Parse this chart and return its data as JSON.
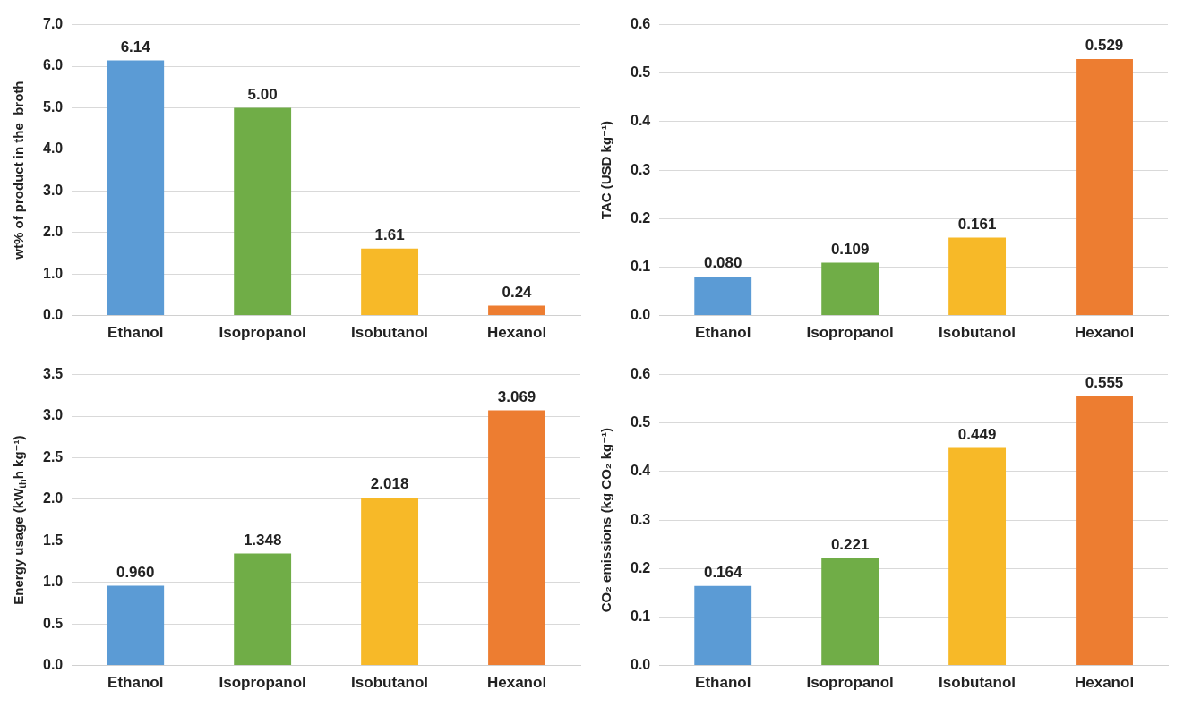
{
  "chart_data": [
    {
      "type": "bar",
      "ylabel": "wt% of product in the  broth",
      "categories": [
        "Ethanol",
        "Isopropanol",
        "Isobutanol",
        "Hexanol"
      ],
      "values": [
        6.14,
        5.0,
        1.61,
        0.24
      ],
      "value_labels": [
        "6.14",
        "5.00",
        "1.61",
        "0.24"
      ],
      "colors": [
        "#5b9bd5",
        "#70ad47",
        "#f7b928",
        "#ed7d31"
      ],
      "ylim": [
        0,
        7
      ],
      "yticks": [
        {
          "value": 0,
          "label": "0.0"
        },
        {
          "value": 1,
          "label": "1.0"
        },
        {
          "value": 2,
          "label": "2.0"
        },
        {
          "value": 3,
          "label": "3.0"
        },
        {
          "value": 4,
          "label": "4.0"
        },
        {
          "value": 5,
          "label": "5.0"
        },
        {
          "value": 6,
          "label": "6.0"
        },
        {
          "value": 7,
          "label": "7.0"
        }
      ],
      "grid": "y",
      "legend": false
    },
    {
      "type": "bar",
      "ylabel": "TAC (USD kg⁻¹)",
      "categories": [
        "Ethanol",
        "Isopropanol",
        "Isobutanol",
        "Hexanol"
      ],
      "values": [
        0.08,
        0.109,
        0.161,
        0.529
      ],
      "value_labels": [
        "0.080",
        "0.109",
        "0.161",
        "0.529"
      ],
      "colors": [
        "#5b9bd5",
        "#70ad47",
        "#f7b928",
        "#ed7d31"
      ],
      "ylim": [
        0,
        0.6
      ],
      "yticks": [
        {
          "value": 0,
          "label": "0.0"
        },
        {
          "value": 0.1,
          "label": "0.1"
        },
        {
          "value": 0.2,
          "label": "0.2"
        },
        {
          "value": 0.3,
          "label": "0.3"
        },
        {
          "value": 0.4,
          "label": "0.4"
        },
        {
          "value": 0.5,
          "label": "0.5"
        },
        {
          "value": 0.6,
          "label": "0.6"
        }
      ],
      "grid": "y",
      "legend": false
    },
    {
      "type": "bar",
      "ylabel": "Energy usage (kW$_{th}$h kg⁻¹)",
      "categories": [
        "Ethanol",
        "Isopropanol",
        "Isobutanol",
        "Hexanol"
      ],
      "values": [
        0.96,
        1.348,
        2.018,
        3.069
      ],
      "value_labels": [
        "0.960",
        "1.348",
        "2.018",
        "3.069"
      ],
      "colors": [
        "#5b9bd5",
        "#70ad47",
        "#f7b928",
        "#ed7d31"
      ],
      "ylim": [
        0,
        3.5
      ],
      "yticks": [
        {
          "value": 0,
          "label": "0.0"
        },
        {
          "value": 0.5,
          "label": "0.5"
        },
        {
          "value": 1,
          "label": "1.0"
        },
        {
          "value": 1.5,
          "label": "1.5"
        },
        {
          "value": 2,
          "label": "2.0"
        },
        {
          "value": 2.5,
          "label": "2.5"
        },
        {
          "value": 3,
          "label": "3.0"
        },
        {
          "value": 3.5,
          "label": "3.5"
        }
      ],
      "grid": "y",
      "legend": false
    },
    {
      "type": "bar",
      "ylabel": "CO₂ emissions (kg CO₂ kg⁻¹)",
      "categories": [
        "Ethanol",
        "Isopropanol",
        "Isobutanol",
        "Hexanol"
      ],
      "values": [
        0.164,
        0.221,
        0.449,
        0.555
      ],
      "value_labels": [
        "0.164",
        "0.221",
        "0.449",
        "0.555"
      ],
      "colors": [
        "#5b9bd5",
        "#70ad47",
        "#f7b928",
        "#ed7d31"
      ],
      "ylim": [
        0,
        0.6
      ],
      "yticks": [
        {
          "value": 0,
          "label": "0.0"
        },
        {
          "value": 0.1,
          "label": "0.1"
        },
        {
          "value": 0.2,
          "label": "0.2"
        },
        {
          "value": 0.3,
          "label": "0.3"
        },
        {
          "value": 0.4,
          "label": "0.4"
        },
        {
          "value": 0.5,
          "label": "0.5"
        },
        {
          "value": 0.6,
          "label": "0.6"
        }
      ],
      "grid": "y",
      "legend": false
    }
  ]
}
